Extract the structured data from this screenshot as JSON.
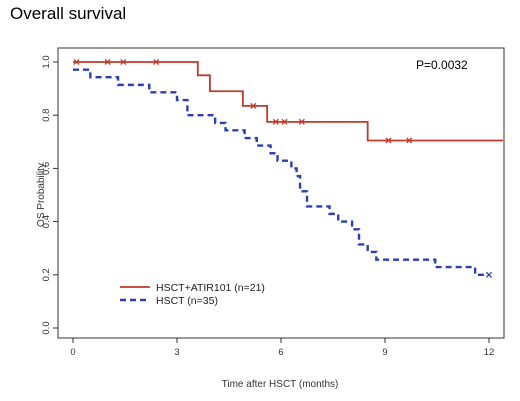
{
  "page": {
    "title": "Overall survival"
  },
  "chart_data": {
    "type": "line",
    "step": true,
    "title": "Overall survival",
    "xlabel": "Time after HSCT (months)",
    "ylabel": "OS Probability",
    "xlim": [
      0,
      12
    ],
    "ylim": [
      0,
      1
    ],
    "xticks": [
      0,
      3,
      6,
      9,
      12
    ],
    "yticks": [
      0.0,
      0.2,
      0.4,
      0.6,
      0.8,
      1.0
    ],
    "ytick_labels": [
      "0.0",
      "0.2",
      "0.4",
      "0.6",
      "0.8",
      "1.0"
    ],
    "grid": false,
    "legend_position": "bottom-left",
    "annotation": "P=0.0032",
    "series": [
      {
        "name": "HSCT+ATIR101 (n=21)",
        "color": "#c0392b",
        "line_style": "solid",
        "steps": [
          [
            0,
            1.0
          ],
          [
            3.6,
            0.95
          ],
          [
            3.95,
            0.89
          ],
          [
            4.9,
            0.835
          ],
          [
            5.6,
            0.775
          ],
          [
            8.5,
            0.705
          ],
          [
            12.5,
            0.705
          ]
        ],
        "censored": [
          [
            0.1,
            1.0
          ],
          [
            1.0,
            1.0
          ],
          [
            1.45,
            1.0
          ],
          [
            2.4,
            1.0
          ],
          [
            5.2,
            0.835
          ],
          [
            5.85,
            0.775
          ],
          [
            6.1,
            0.775
          ],
          [
            6.6,
            0.775
          ],
          [
            9.1,
            0.705
          ],
          [
            9.7,
            0.705
          ]
        ]
      },
      {
        "name": "HSCT (n=35)",
        "color": "#2b3fb0",
        "line_style": "dashed",
        "steps": [
          [
            0,
            0.971
          ],
          [
            0.5,
            0.943
          ],
          [
            1.3,
            0.914
          ],
          [
            2.2,
            0.886
          ],
          [
            3.0,
            0.857
          ],
          [
            3.3,
            0.8
          ],
          [
            4.1,
            0.771
          ],
          [
            4.4,
            0.743
          ],
          [
            4.95,
            0.714
          ],
          [
            5.3,
            0.686
          ],
          [
            5.7,
            0.657
          ],
          [
            5.9,
            0.629
          ],
          [
            6.3,
            0.6
          ],
          [
            6.45,
            0.571
          ],
          [
            6.55,
            0.514
          ],
          [
            6.75,
            0.457
          ],
          [
            7.4,
            0.429
          ],
          [
            7.65,
            0.4
          ],
          [
            8.05,
            0.371
          ],
          [
            8.25,
            0.314
          ],
          [
            8.5,
            0.286
          ],
          [
            8.75,
            0.257
          ],
          [
            10.45,
            0.229
          ],
          [
            11.6,
            0.2
          ],
          [
            12.0,
            0.2
          ]
        ],
        "censored": [
          [
            12.0,
            0.2
          ]
        ]
      }
    ]
  }
}
